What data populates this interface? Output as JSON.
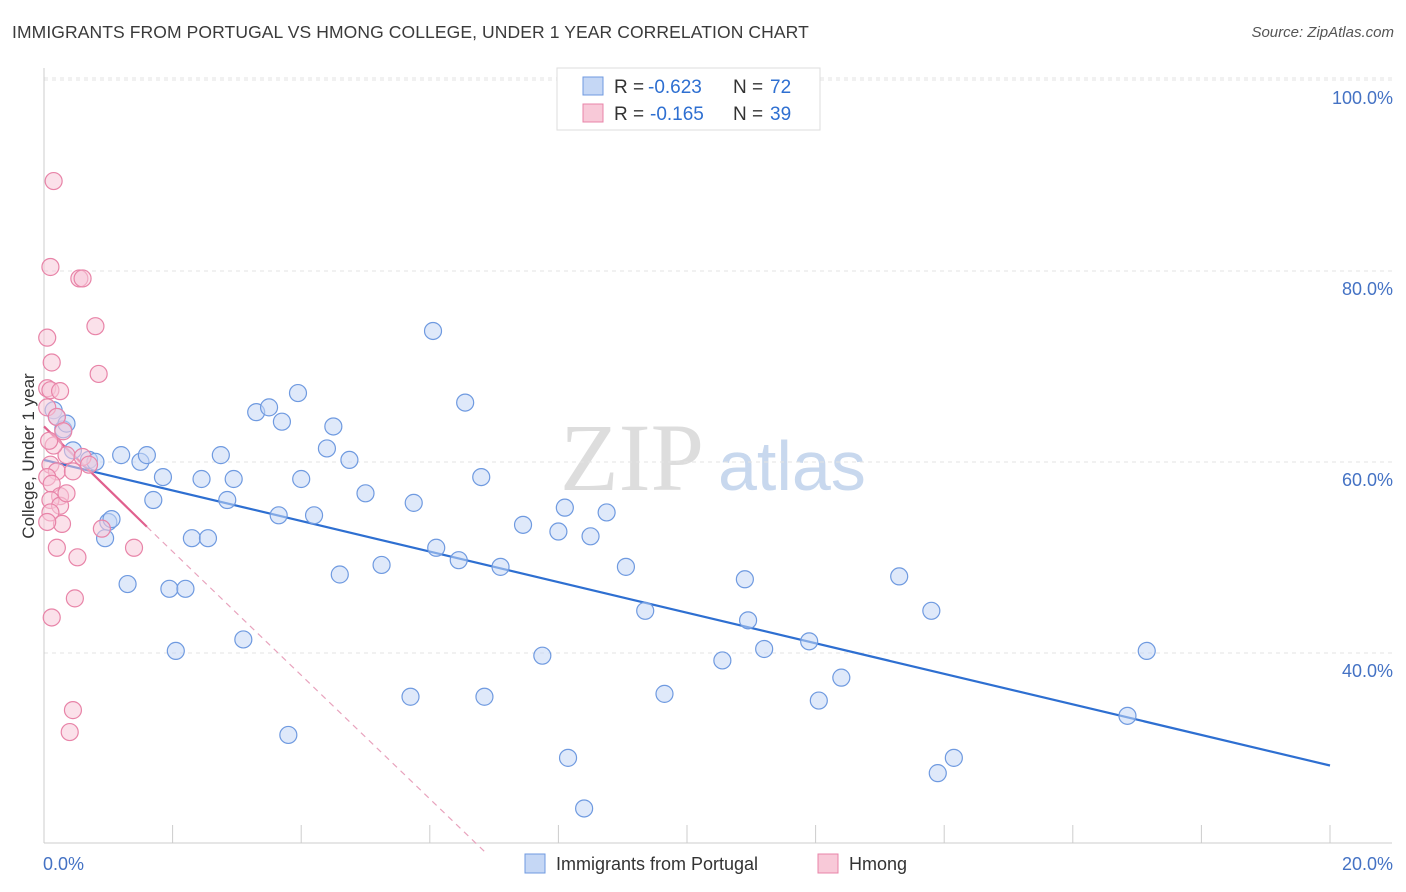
{
  "title": "IMMIGRANTS FROM PORTUGAL VS HMONG COLLEGE, UNDER 1 YEAR CORRELATION CHART",
  "source": "Source: ZipAtlas.com",
  "watermark": {
    "zip": "ZIP",
    "atlas": "atlas"
  },
  "chart_data": {
    "type": "scatter",
    "xlabel": "",
    "ylabel": "College, Under 1 year",
    "xlim": [
      0,
      20
    ],
    "ylim": [
      20,
      103
    ],
    "x_ticks": [
      {
        "value": 0,
        "label": "0.0%"
      },
      {
        "value": 20,
        "label": "20.0%"
      }
    ],
    "y_ticks": [
      {
        "value": 40,
        "label": "40.0%"
      },
      {
        "value": 60,
        "label": "60.0%"
      },
      {
        "value": 80,
        "label": "80.0%"
      },
      {
        "value": 100,
        "label": "100.0%"
      }
    ],
    "legend": [
      {
        "r_label": "R =",
        "r_value": "-0.623",
        "n_label": "N =",
        "n_value": "72"
      },
      {
        "r_label": "R =",
        "r_value": "-0.165",
        "n_label": "N =",
        "n_value": "39"
      }
    ],
    "series": [
      {
        "name": "Immigrants from Portugal",
        "color": "#6f9ae0",
        "fill": "#c5d7f5",
        "trend": {
          "x0": 0,
          "y0": 62.0,
          "x1": 20,
          "y1": 30.0
        },
        "points": [
          [
            0.15,
            67.2
          ],
          [
            0.2,
            66.5
          ],
          [
            0.3,
            65.2
          ],
          [
            0.35,
            65.8
          ],
          [
            0.45,
            63.0
          ],
          [
            0.7,
            62.0
          ],
          [
            0.8,
            61.8
          ],
          [
            1.0,
            55.5
          ],
          [
            0.95,
            53.8
          ],
          [
            1.3,
            49.0
          ],
          [
            1.2,
            62.5
          ],
          [
            1.5,
            61.8
          ],
          [
            1.6,
            62.5
          ],
          [
            1.7,
            57.8
          ],
          [
            1.85,
            60.2
          ],
          [
            1.95,
            48.5
          ],
          [
            2.05,
            42.0
          ],
          [
            2.2,
            48.5
          ],
          [
            2.3,
            53.8
          ],
          [
            2.45,
            60.0
          ],
          [
            2.55,
            53.8
          ],
          [
            2.75,
            62.5
          ],
          [
            2.85,
            57.8
          ],
          [
            2.95,
            60.0
          ],
          [
            3.1,
            43.2
          ],
          [
            3.3,
            67.0
          ],
          [
            3.5,
            67.5
          ],
          [
            3.65,
            56.2
          ],
          [
            3.7,
            66.0
          ],
          [
            3.8,
            33.2
          ],
          [
            3.95,
            69.0
          ],
          [
            4.0,
            60.0
          ],
          [
            4.2,
            56.2
          ],
          [
            4.4,
            63.2
          ],
          [
            4.5,
            65.5
          ],
          [
            4.6,
            50.0
          ],
          [
            4.75,
            62.0
          ],
          [
            5.0,
            58.5
          ],
          [
            5.25,
            51.0
          ],
          [
            5.7,
            37.2
          ],
          [
            5.75,
            57.5
          ],
          [
            6.05,
            75.5
          ],
          [
            6.1,
            52.8
          ],
          [
            6.45,
            51.5
          ],
          [
            6.55,
            68.0
          ],
          [
            6.8,
            60.2
          ],
          [
            6.85,
            37.2
          ],
          [
            7.1,
            50.8
          ],
          [
            7.45,
            55.2
          ],
          [
            7.75,
            41.5
          ],
          [
            8.0,
            54.5
          ],
          [
            8.1,
            57.0
          ],
          [
            8.15,
            30.8
          ],
          [
            8.4,
            25.5
          ],
          [
            8.5,
            54.0
          ],
          [
            8.75,
            56.5
          ],
          [
            9.05,
            50.8
          ],
          [
            9.35,
            46.2
          ],
          [
            9.65,
            37.5
          ],
          [
            10.55,
            41.0
          ],
          [
            10.9,
            49.5
          ],
          [
            10.95,
            45.2
          ],
          [
            11.2,
            42.2
          ],
          [
            11.9,
            43.0
          ],
          [
            12.05,
            36.8
          ],
          [
            12.4,
            39.2
          ],
          [
            13.3,
            49.8
          ],
          [
            13.8,
            46.2
          ],
          [
            13.9,
            29.2
          ],
          [
            14.15,
            30.8
          ],
          [
            16.85,
            35.2
          ],
          [
            17.15,
            42.0
          ],
          [
            1.05,
            55.8
          ]
        ]
      },
      {
        "name": "Hmong",
        "color": "#e884a8",
        "fill": "#f8c9d8",
        "trend": {
          "x0": 0,
          "y0": 65.5,
          "x1": 1.6,
          "y1": 55.0
        },
        "trend_ext": {
          "x0": 1.6,
          "y0": 55.0,
          "x1": 6.85,
          "y1": 21.0
        },
        "points": [
          [
            0.15,
            91.2
          ],
          [
            0.1,
            82.2
          ],
          [
            0.55,
            81.0
          ],
          [
            0.6,
            81.0
          ],
          [
            0.8,
            76.0
          ],
          [
            0.05,
            74.8
          ],
          [
            0.12,
            72.2
          ],
          [
            0.05,
            69.5
          ],
          [
            0.1,
            69.3
          ],
          [
            0.25,
            69.2
          ],
          [
            0.85,
            71.0
          ],
          [
            0.05,
            67.5
          ],
          [
            0.2,
            66.5
          ],
          [
            0.3,
            65.0
          ],
          [
            0.35,
            62.5
          ],
          [
            0.1,
            61.5
          ],
          [
            0.2,
            60.8
          ],
          [
            0.05,
            60.2
          ],
          [
            0.12,
            59.5
          ],
          [
            0.25,
            58.2
          ],
          [
            0.1,
            57.8
          ],
          [
            0.25,
            57.2
          ],
          [
            0.1,
            56.5
          ],
          [
            0.28,
            55.3
          ],
          [
            0.45,
            60.8
          ],
          [
            0.9,
            54.8
          ],
          [
            1.4,
            52.8
          ],
          [
            0.2,
            52.8
          ],
          [
            0.52,
            51.8
          ],
          [
            0.48,
            47.5
          ],
          [
            0.12,
            45.5
          ],
          [
            0.45,
            35.8
          ],
          [
            0.4,
            33.5
          ],
          [
            0.6,
            62.3
          ],
          [
            0.7,
            61.5
          ],
          [
            0.15,
            63.5
          ],
          [
            0.08,
            64.0
          ],
          [
            0.35,
            58.5
          ],
          [
            0.05,
            55.5
          ]
        ]
      }
    ],
    "bottom_legend": [
      "Immigrants from Portugal",
      "Hmong"
    ]
  }
}
